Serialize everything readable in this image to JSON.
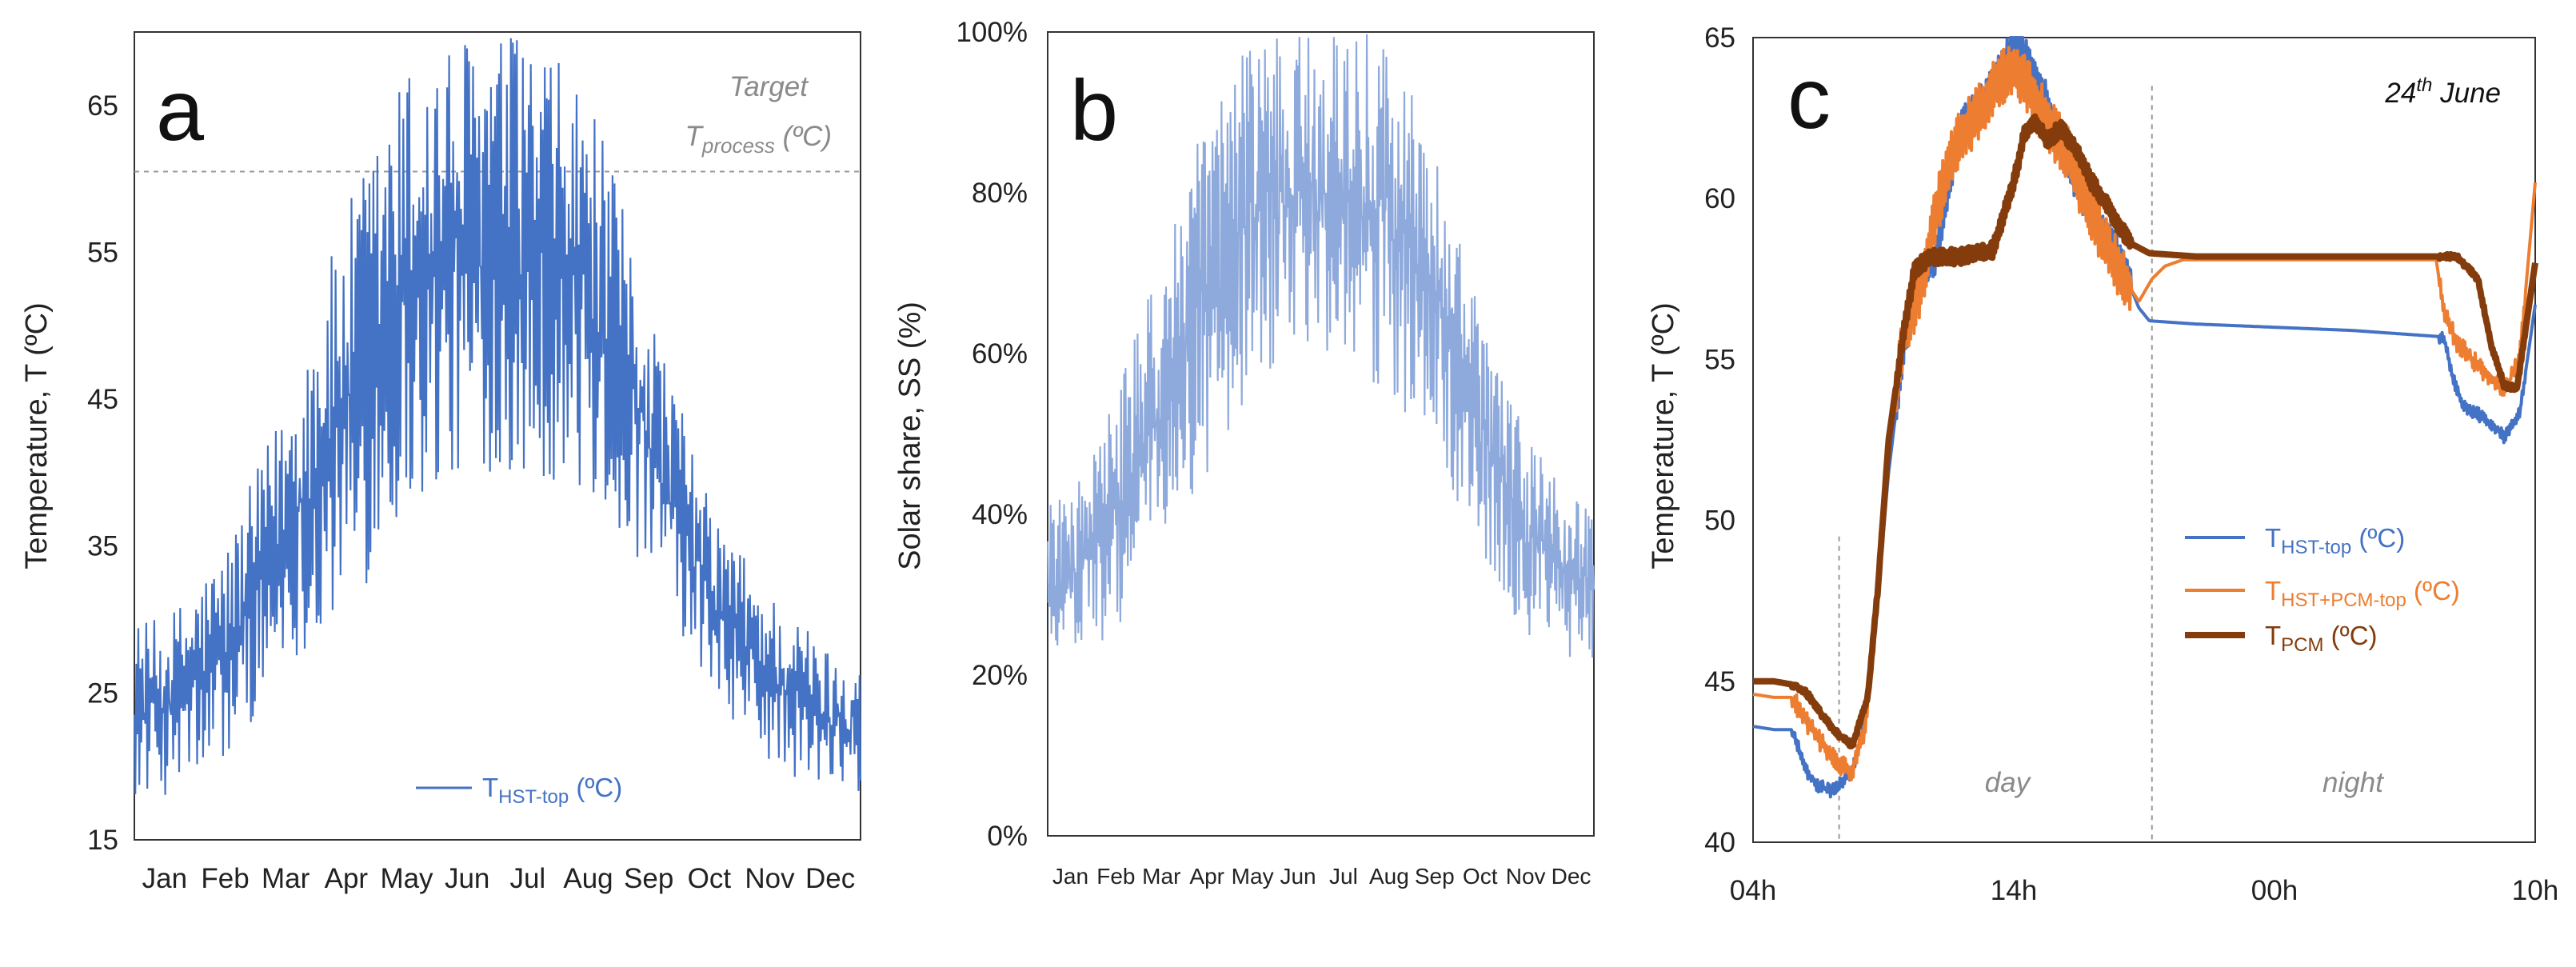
{
  "chart_data": [
    {
      "panel": "a",
      "type": "line",
      "title": "",
      "xlabel": "",
      "ylabel": "Temperature, T (ºC)",
      "ylim": [
        15,
        70
      ],
      "yticks": [
        "15",
        "25",
        "35",
        "45",
        "55",
        "65"
      ],
      "categories": [
        "Jan",
        "Feb",
        "Mar",
        "Apr",
        "May",
        "Jun",
        "Jul",
        "Aug",
        "Sep",
        "Oct",
        "Nov",
        "Dec"
      ],
      "grid": false,
      "legend_position": "bottom-right",
      "series": [
        {
          "name": "T_HST-top (ºC)",
          "legend_main": "T",
          "legend_sub": "HST-top",
          "legend_suffix": " (ºC)",
          "color": "#4472C4",
          "monthly_low": [
            18,
            20,
            27,
            30,
            37,
            40,
            40,
            38,
            33,
            25,
            20,
            18
          ],
          "monthly_high": [
            30,
            35,
            45,
            58,
            68,
            70,
            70,
            66,
            52,
            38,
            32,
            28
          ]
        }
      ],
      "annotation": {
        "label_line1": "Target",
        "label_line2_main": "T",
        "label_line2_sub": "process",
        "label_line2_suffix": " (ºC)",
        "value": 60.5,
        "color": "#8a8a8a"
      }
    },
    {
      "panel": "b",
      "type": "line",
      "title": "",
      "xlabel": "",
      "ylabel": "Solar share, SS (%)",
      "ylim": [
        0,
        100
      ],
      "yticks": [
        "0%",
        "20%",
        "40%",
        "60%",
        "80%",
        "100%"
      ],
      "categories": [
        "Jan",
        "Feb",
        "Mar",
        "Apr",
        "May",
        "Jun",
        "Jul",
        "Aug",
        "Sep",
        "Oct",
        "Nov",
        "Dec"
      ],
      "grid": false,
      "series": [
        {
          "name": "Solar share",
          "color": "#8EA9DB",
          "monthly_low": [
            22,
            25,
            35,
            45,
            55,
            60,
            58,
            55,
            48,
            35,
            25,
            22
          ],
          "monthly_high": [
            42,
            55,
            72,
            90,
            100,
            100,
            100,
            100,
            85,
            65,
            50,
            42
          ]
        }
      ]
    },
    {
      "panel": "c",
      "type": "line",
      "title": "24th June",
      "title_main": "24",
      "title_sup": "th",
      "title_rest": " June",
      "xlabel": "",
      "ylabel": "Temperature, T (ºC)",
      "ylim": [
        40,
        65
      ],
      "yticks": [
        "40",
        "45",
        "50",
        "55",
        "60",
        "65"
      ],
      "xlim_hours": [
        0,
        30
      ],
      "xticks": [
        {
          "label": "04h",
          "hour": 0
        },
        {
          "label": "14h",
          "hour": 10
        },
        {
          "label": "00h",
          "hour": 20
        },
        {
          "label": "10h",
          "hour": 30
        }
      ],
      "grid": false,
      "legend_position": "right",
      "series": [
        {
          "name": "T_HST-top (ºC)",
          "legend_main": "T",
          "legend_sub": "HST-top",
          "legend_suffix": " (ºC)",
          "color": "#4472C4",
          "width": 4,
          "x": [
            0,
            0.8,
            1.5,
            2.0,
            2.4,
            3.0,
            3.8,
            4.2,
            4.6,
            5.2,
            5.8,
            6.5,
            7.0,
            7.5,
            8.0,
            8.8,
            9.5,
            10.0,
            10.5,
            11.2,
            12.0,
            13.0,
            14.0,
            14.8,
            15.2,
            17.0,
            20.0,
            23.0,
            26.5,
            26.8,
            27.2,
            27.8,
            28.3,
            28.8,
            29.4,
            30.0
          ],
          "y": [
            43.6,
            43.5,
            43.5,
            42.3,
            41.8,
            41.6,
            42.2,
            43.5,
            46.0,
            51.5,
            55.5,
            57.8,
            58.2,
            60.5,
            62.2,
            63.0,
            64.0,
            64.8,
            64.3,
            63.2,
            61.2,
            59.5,
            58.2,
            56.6,
            56.2,
            56.1,
            56.0,
            55.9,
            55.7,
            54.5,
            53.6,
            53.3,
            53.0,
            52.6,
            53.3,
            56.7
          ],
          "jitter": 0.6
        },
        {
          "name": "T_HST+PCM-top (ºC)",
          "legend_main": "T",
          "legend_sub": "HST+PCM-top",
          "legend_suffix": " (ºC)",
          "color": "#ED7D31",
          "width": 4,
          "x": [
            0,
            0.8,
            1.5,
            2.0,
            2.5,
            3.2,
            3.8,
            4.3,
            4.7,
            5.2,
            5.8,
            6.5,
            7.0,
            7.5,
            8.0,
            8.8,
            9.5,
            10.0,
            10.5,
            11.2,
            12.0,
            13.0,
            14.0,
            14.8,
            15.3,
            15.8,
            16.5,
            18.0,
            20.0,
            23.0,
            26.2,
            26.5,
            27.0,
            27.6,
            28.2,
            28.8,
            29.4,
            30.0
          ],
          "y": [
            44.6,
            44.5,
            44.5,
            43.8,
            43.2,
            42.5,
            42.2,
            43.5,
            47.0,
            52.5,
            55.8,
            57.5,
            59.5,
            61.0,
            62.0,
            62.8,
            63.8,
            64.0,
            63.5,
            62.5,
            61.5,
            59.5,
            57.8,
            56.8,
            57.5,
            57.9,
            58.1,
            58.1,
            58.1,
            58.1,
            58.1,
            56.5,
            55.5,
            55.0,
            54.5,
            54.0,
            55.0,
            60.5
          ],
          "jitter": 0.9
        },
        {
          "name": "T_PCM (ºC)",
          "legend_main": "T",
          "legend_sub": "PCM",
          "legend_suffix": " (ºC)",
          "color": "#843C0C",
          "width": 8,
          "x": [
            0,
            0.8,
            1.5,
            2.0,
            2.6,
            3.2,
            3.8,
            4.4,
            4.8,
            5.2,
            5.8,
            6.2,
            6.8,
            7.4,
            8.0,
            8.6,
            9.2,
            10.0,
            10.4,
            10.8,
            11.3,
            11.8,
            12.4,
            13.0,
            13.8,
            14.5,
            15.2,
            17.0,
            20.0,
            23.0,
            26.0,
            27.0,
            27.8,
            28.3,
            28.8,
            29.3,
            30.0
          ],
          "y": [
            45.0,
            45.0,
            44.9,
            44.7,
            44.0,
            43.4,
            43.0,
            44.5,
            48.0,
            52.5,
            56.0,
            57.8,
            58.2,
            58.2,
            58.2,
            58.3,
            58.4,
            60.5,
            62.0,
            62.4,
            61.8,
            62.2,
            61.5,
            60.5,
            59.5,
            58.6,
            58.3,
            58.2,
            58.2,
            58.2,
            58.2,
            58.2,
            57.5,
            55.5,
            54.2,
            54.1,
            58.0
          ],
          "jitter": 0.25
        }
      ],
      "annotations": [
        {
          "label": "day",
          "hour": 3.3,
          "line_top": 49.5
        },
        {
          "label": "night",
          "hour": 15.3,
          "line_top": 63.5
        }
      ]
    }
  ]
}
